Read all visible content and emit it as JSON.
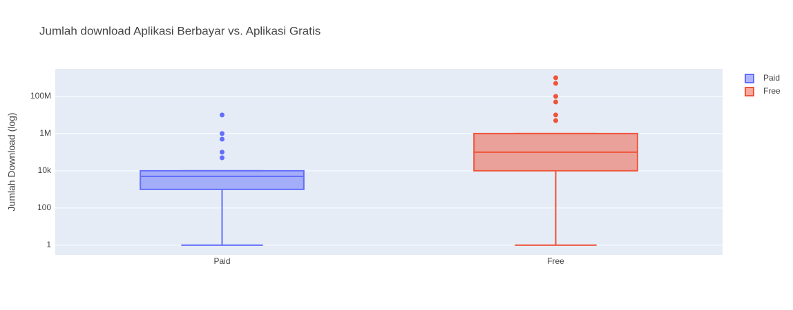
{
  "chart_data": {
    "type": "box",
    "title": "Jumlah download Aplikasi Berbayar vs. Aplikasi Gratis",
    "y_label": "Jumlah Download (log)",
    "categories": [
      "Paid",
      "Free"
    ],
    "log_y": true,
    "grid": true,
    "legend": "top-right",
    "ylim": [
      0.3,
      3000000000
    ],
    "yticks": [
      1,
      100,
      {
        "value": 10000,
        "label": "10k"
      },
      {
        "value": 1000000,
        "label": "1M"
      },
      {
        "value": 100000000,
        "label": "100M"
      }
    ],
    "series": [
      {
        "name": "Paid",
        "color": "#636efa",
        "min": 1,
        "q1": 1000,
        "median": 5000,
        "q3": 10000,
        "max": 10000,
        "outliers": [
          50000,
          100000,
          500000,
          1000000,
          10000000
        ]
      },
      {
        "name": "Free",
        "color": "#ef553b",
        "min": 1,
        "q1": 10000,
        "median": 100000,
        "q3": 1000000,
        "max": 1000000,
        "outliers": [
          5000000,
          10000000,
          50000000,
          100000000,
          500000000,
          1000000000
        ]
      }
    ]
  }
}
